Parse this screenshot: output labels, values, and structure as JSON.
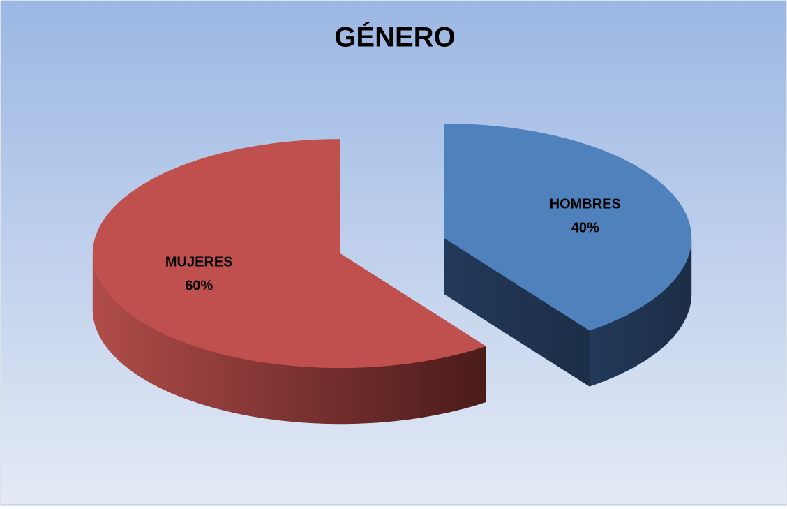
{
  "chart_data": {
    "type": "pie",
    "title": "GÉNERO",
    "categories": [
      "HOMBRES",
      "MUJERES"
    ],
    "values": [
      40,
      60
    ],
    "value_labels": [
      "40%",
      "60%"
    ],
    "colors": [
      "#4f81bd",
      "#c0504d"
    ],
    "legend": false
  }
}
